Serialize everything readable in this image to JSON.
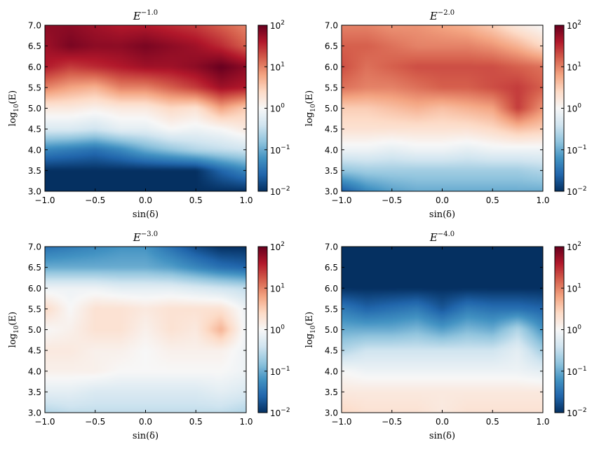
{
  "chart_data": [
    {
      "type": "heatmap",
      "title": {
        "base": "E",
        "exp": "−1.0"
      },
      "xlabel": {
        "text": "sin(δ)"
      },
      "ylabel": {
        "pre": "log",
        "sub": "10",
        "post": "(E)"
      },
      "xlim": [
        -1.0,
        1.0
      ],
      "ylim": [
        3.0,
        7.0
      ],
      "xticks": [
        "−1.0",
        "−0.5",
        "0.0",
        "0.5",
        "1.0"
      ],
      "yticks": [
        "3.0",
        "3.5",
        "4.0",
        "4.5",
        "5.0",
        "5.5",
        "6.0",
        "6.5",
        "7.0"
      ],
      "colorbar": {
        "scale": "log",
        "range": [
          0.01,
          100
        ],
        "colormap": "RdBu_r",
        "ticks": [
          {
            "base": "10",
            "exp": "−2"
          },
          {
            "base": "10",
            "exp": "−1"
          },
          {
            "base": "10",
            "exp": "0"
          },
          {
            "base": "10",
            "exp": "1"
          },
          {
            "base": "10",
            "exp": "2"
          }
        ]
      },
      "x": [
        -1.0,
        -0.75,
        -0.5,
        -0.25,
        0.0,
        0.25,
        0.5,
        0.75,
        1.0
      ],
      "y": [
        3.0,
        3.5,
        4.0,
        4.5,
        5.0,
        5.5,
        6.0,
        6.5,
        7.0
      ],
      "log10_values": [
        [
          -2.0,
          -2.0,
          -2.0,
          -2.0,
          -2.0,
          -2.0,
          -2.0,
          -2.0,
          -2.0
        ],
        [
          -2.0,
          -2.0,
          -2.0,
          -2.0,
          -2.0,
          -2.0,
          -2.0,
          -1.6,
          -1.3
        ],
        [
          -1.3,
          -1.4,
          -1.5,
          -1.3,
          -1.0,
          -0.8,
          -0.6,
          -0.5,
          -0.4
        ],
        [
          -0.3,
          -0.3,
          -0.4,
          -0.2,
          -0.2,
          0.0,
          -0.1,
          0.0,
          0.2
        ],
        [
          0.2,
          0.2,
          0.1,
          0.2,
          0.2,
          0.4,
          0.3,
          0.8,
          0.5
        ],
        [
          1.0,
          0.8,
          0.7,
          1.0,
          1.0,
          1.2,
          1.4,
          1.7,
          1.6
        ],
        [
          1.6,
          1.4,
          1.5,
          1.6,
          1.7,
          1.7,
          1.8,
          2.0,
          1.8
        ],
        [
          1.7,
          1.9,
          1.8,
          1.8,
          1.9,
          1.8,
          1.7,
          1.5,
          1.2
        ],
        [
          1.8,
          1.8,
          1.7,
          1.6,
          1.6,
          1.5,
          1.4,
          1.2,
          1.0
        ]
      ]
    },
    {
      "type": "heatmap",
      "title": {
        "base": "E",
        "exp": "−2.0"
      },
      "xlabel": {
        "text": "sin(δ)"
      },
      "ylabel": {
        "pre": "log",
        "sub": "10",
        "post": "(E)"
      },
      "xlim": [
        -1.0,
        1.0
      ],
      "ylim": [
        3.0,
        7.0
      ],
      "xticks": [
        "−1.0",
        "−0.5",
        "0.0",
        "0.5",
        "1.0"
      ],
      "yticks": [
        "3.0",
        "3.5",
        "4.0",
        "4.5",
        "5.0",
        "5.5",
        "6.0",
        "6.5",
        "7.0"
      ],
      "colorbar": {
        "scale": "log",
        "range": [
          0.01,
          100
        ],
        "colormap": "RdBu_r",
        "ticks": [
          {
            "base": "10",
            "exp": "−2"
          },
          {
            "base": "10",
            "exp": "−1"
          },
          {
            "base": "10",
            "exp": "0"
          },
          {
            "base": "10",
            "exp": "1"
          },
          {
            "base": "10",
            "exp": "2"
          }
        ]
      },
      "x": [
        -1.0,
        -0.75,
        -0.5,
        -0.25,
        0.0,
        0.25,
        0.5,
        0.75,
        1.0
      ],
      "y": [
        3.0,
        3.5,
        4.0,
        4.5,
        5.0,
        5.5,
        6.0,
        6.5,
        7.0
      ],
      "log10_values": [
        [
          -1.7,
          -1.3,
          -1.1,
          -1.0,
          -1.0,
          -1.0,
          -1.0,
          -1.0,
          -1.0
        ],
        [
          -0.8,
          -0.7,
          -0.7,
          -0.7,
          -0.7,
          -0.7,
          -0.7,
          -0.7,
          -0.6
        ],
        [
          -0.1,
          -0.1,
          -0.2,
          -0.1,
          -0.1,
          -0.2,
          -0.1,
          -0.1,
          -0.1
        ],
        [
          0.3,
          0.3,
          0.3,
          0.3,
          0.3,
          0.3,
          0.4,
          0.6,
          0.5
        ],
        [
          0.5,
          0.5,
          0.6,
          0.7,
          0.6,
          0.7,
          0.8,
          1.4,
          0.9
        ],
        [
          1.1,
          1.0,
          1.0,
          1.1,
          1.2,
          1.2,
          1.3,
          1.4,
          1.2
        ],
        [
          1.3,
          1.1,
          1.2,
          1.3,
          1.3,
          1.3,
          1.3,
          1.2,
          1.1
        ],
        [
          1.2,
          1.2,
          1.1,
          1.0,
          1.0,
          1.0,
          0.9,
          0.7,
          0.4
        ],
        [
          1.0,
          1.0,
          0.9,
          0.9,
          0.8,
          0.7,
          0.5,
          0.2,
          0.0
        ]
      ]
    },
    {
      "type": "heatmap",
      "title": {
        "base": "E",
        "exp": "−3.0"
      },
      "xlabel": {
        "text": "sin(δ)"
      },
      "ylabel": {
        "pre": "log",
        "sub": "10",
        "post": "(E)"
      },
      "xlim": [
        -1.0,
        1.0
      ],
      "ylim": [
        3.0,
        7.0
      ],
      "xticks": [
        "−1.0",
        "−0.5",
        "0.0",
        "0.5",
        "1.0"
      ],
      "yticks": [
        "3.0",
        "3.5",
        "4.0",
        "4.5",
        "5.0",
        "5.5",
        "6.0",
        "6.5",
        "7.0"
      ],
      "colorbar": {
        "scale": "log",
        "range": [
          0.01,
          100
        ],
        "colormap": "RdBu_r",
        "ticks": [
          {
            "base": "10",
            "exp": "−2"
          },
          {
            "base": "10",
            "exp": "−1"
          },
          {
            "base": "10",
            "exp": "0"
          },
          {
            "base": "10",
            "exp": "1"
          },
          {
            "base": "10",
            "exp": "2"
          }
        ]
      },
      "x": [
        -1.0,
        -0.75,
        -0.5,
        -0.25,
        0.0,
        0.25,
        0.5,
        0.75,
        1.0
      ],
      "y": [
        3.0,
        3.5,
        4.0,
        4.5,
        5.0,
        5.5,
        6.0,
        6.5,
        7.0
      ],
      "log10_values": [
        [
          -0.6,
          -0.5,
          -0.5,
          -0.5,
          -0.5,
          -0.5,
          -0.5,
          -0.5,
          -0.6
        ],
        [
          -0.2,
          -0.2,
          -0.3,
          -0.3,
          -0.3,
          -0.3,
          -0.3,
          -0.2,
          -0.3
        ],
        [
          0.1,
          0.1,
          0.1,
          0.0,
          0.0,
          0.0,
          0.0,
          0.0,
          -0.1
        ],
        [
          0.2,
          0.2,
          0.1,
          0.1,
          0.0,
          0.1,
          0.1,
          0.1,
          -0.1
        ],
        [
          0.0,
          0.1,
          0.3,
          0.3,
          0.1,
          0.3,
          0.2,
          0.7,
          -0.1
        ],
        [
          0.4,
          0.0,
          0.3,
          0.3,
          0.2,
          0.3,
          0.3,
          0.3,
          -0.1
        ],
        [
          -0.1,
          -0.1,
          -0.1,
          -0.2,
          -0.2,
          -0.2,
          -0.3,
          -0.4,
          -0.5
        ],
        [
          -1.0,
          -1.0,
          -1.0,
          -1.0,
          -1.0,
          -1.1,
          -1.3,
          -1.5,
          -1.6
        ],
        [
          -1.5,
          -1.4,
          -1.3,
          -1.2,
          -1.2,
          -1.5,
          -1.8,
          -2.0,
          -2.0
        ]
      ]
    },
    {
      "type": "heatmap",
      "title": {
        "base": "E",
        "exp": "−4.0"
      },
      "xlabel": {
        "text": "sin(δ)"
      },
      "ylabel": {
        "pre": "log",
        "sub": "10",
        "post": "(E)"
      },
      "xlim": [
        -1.0,
        1.0
      ],
      "ylim": [
        3.0,
        7.0
      ],
      "xticks": [
        "−1.0",
        "−0.5",
        "0.0",
        "0.5",
        "1.0"
      ],
      "yticks": [
        "3.0",
        "3.5",
        "4.0",
        "4.5",
        "5.0",
        "5.5",
        "6.0",
        "6.5",
        "7.0"
      ],
      "colorbar": {
        "scale": "log",
        "range": [
          0.01,
          100
        ],
        "colormap": "RdBu_r",
        "ticks": [
          {
            "base": "10",
            "exp": "−2"
          },
          {
            "base": "10",
            "exp": "−1"
          },
          {
            "base": "10",
            "exp": "0"
          },
          {
            "base": "10",
            "exp": "1"
          },
          {
            "base": "10",
            "exp": "2"
          }
        ]
      },
      "x": [
        -1.0,
        -0.75,
        -0.5,
        -0.25,
        0.0,
        0.25,
        0.5,
        0.75,
        1.0
      ],
      "y": [
        3.0,
        3.5,
        4.0,
        4.5,
        5.0,
        5.5,
        6.0,
        6.5,
        7.0
      ],
      "log10_values": [
        [
          0.4,
          0.3,
          0.3,
          0.3,
          0.2,
          0.3,
          0.3,
          0.3,
          0.3
        ],
        [
          0.2,
          0.2,
          0.2,
          0.2,
          0.2,
          0.2,
          0.2,
          0.2,
          0.2
        ],
        [
          0.0,
          -0.1,
          -0.1,
          -0.1,
          -0.1,
          -0.1,
          -0.1,
          -0.1,
          -0.2
        ],
        [
          -0.6,
          -0.4,
          -0.4,
          -0.4,
          -0.4,
          -0.4,
          -0.4,
          -0.2,
          -0.7
        ],
        [
          -1.0,
          -1.0,
          -1.0,
          -0.9,
          -1.1,
          -0.9,
          -1.0,
          -0.6,
          -1.2
        ],
        [
          -1.4,
          -1.6,
          -1.5,
          -1.4,
          -1.7,
          -1.4,
          -1.5,
          -1.5,
          -1.6
        ],
        [
          -2.0,
          -2.0,
          -2.0,
          -2.0,
          -2.0,
          -2.0,
          -2.0,
          -2.0,
          -2.0
        ],
        [
          -2.0,
          -2.0,
          -2.0,
          -2.0,
          -2.0,
          -2.0,
          -2.0,
          -2.0,
          -2.0
        ],
        [
          -2.0,
          -2.0,
          -2.0,
          -2.0,
          -2.0,
          -2.0,
          -2.0,
          -2.0,
          -2.0
        ]
      ]
    }
  ]
}
